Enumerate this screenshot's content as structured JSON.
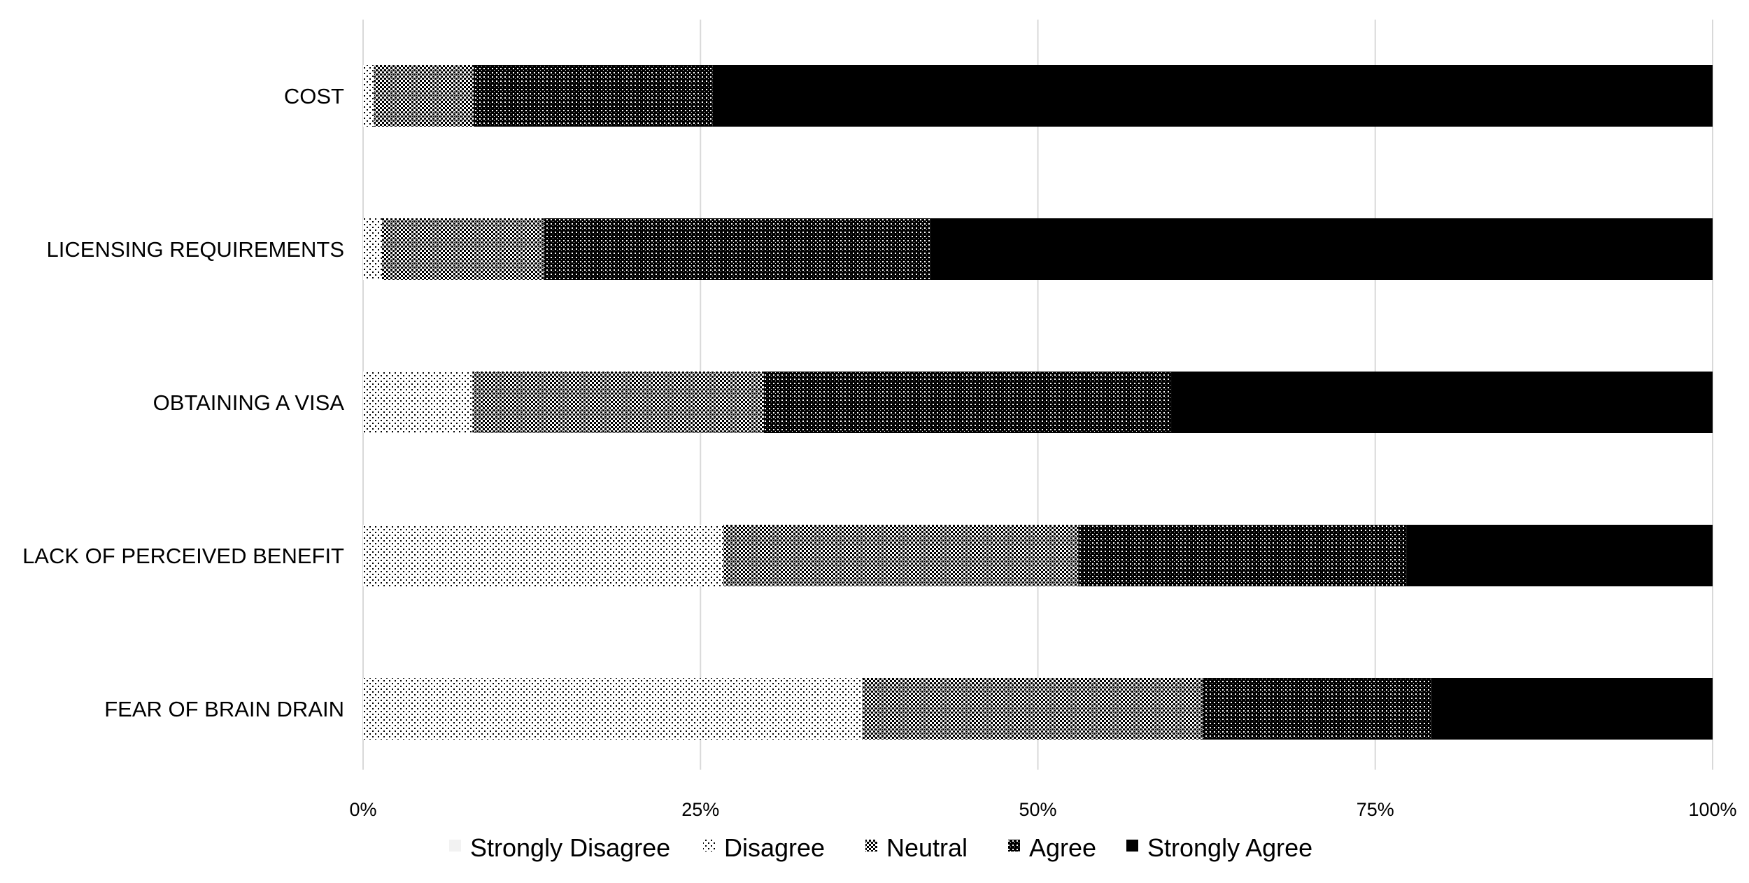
{
  "chart_data": {
    "type": "bar",
    "orientation": "horizontal",
    "stacked": true,
    "percent_stacked": true,
    "title": "",
    "xlabel": "",
    "ylabel": "",
    "xlim": [
      0,
      100
    ],
    "x_ticks": [
      "0%",
      "25%",
      "50%",
      "75%",
      "100%"
    ],
    "grid": "vertical",
    "legend_position": "bottom",
    "categories": [
      "COST",
      "LICENSING REQUIREMENTS",
      "OBTAINING A VISA",
      "LACK OF PERCEIVED BENEFIT",
      "FEAR OF BRAIN DRAIN"
    ],
    "series": [
      {
        "name": "Strongly Disagree",
        "pattern": "light",
        "values": [
          0,
          0,
          0,
          0,
          0
        ]
      },
      {
        "name": "Disagree",
        "pattern": "sparse-dots",
        "values": [
          0.8,
          1.4,
          8.1,
          26.7,
          37.0
        ]
      },
      {
        "name": "Neutral",
        "pattern": "checker",
        "values": [
          7.4,
          12.0,
          21.6,
          26.3,
          25.2
        ]
      },
      {
        "name": "Agree",
        "pattern": "dense-dots",
        "values": [
          17.7,
          28.6,
          30.2,
          24.3,
          17.0
        ]
      },
      {
        "name": "Strongly Agree",
        "pattern": "solid",
        "values": [
          74.1,
          58.0,
          40.1,
          22.7,
          20.8
        ]
      }
    ],
    "colors": {
      "bar_fill": "#000000",
      "grid": "#d9d9d9",
      "light_fill": "#eeeeee"
    }
  }
}
